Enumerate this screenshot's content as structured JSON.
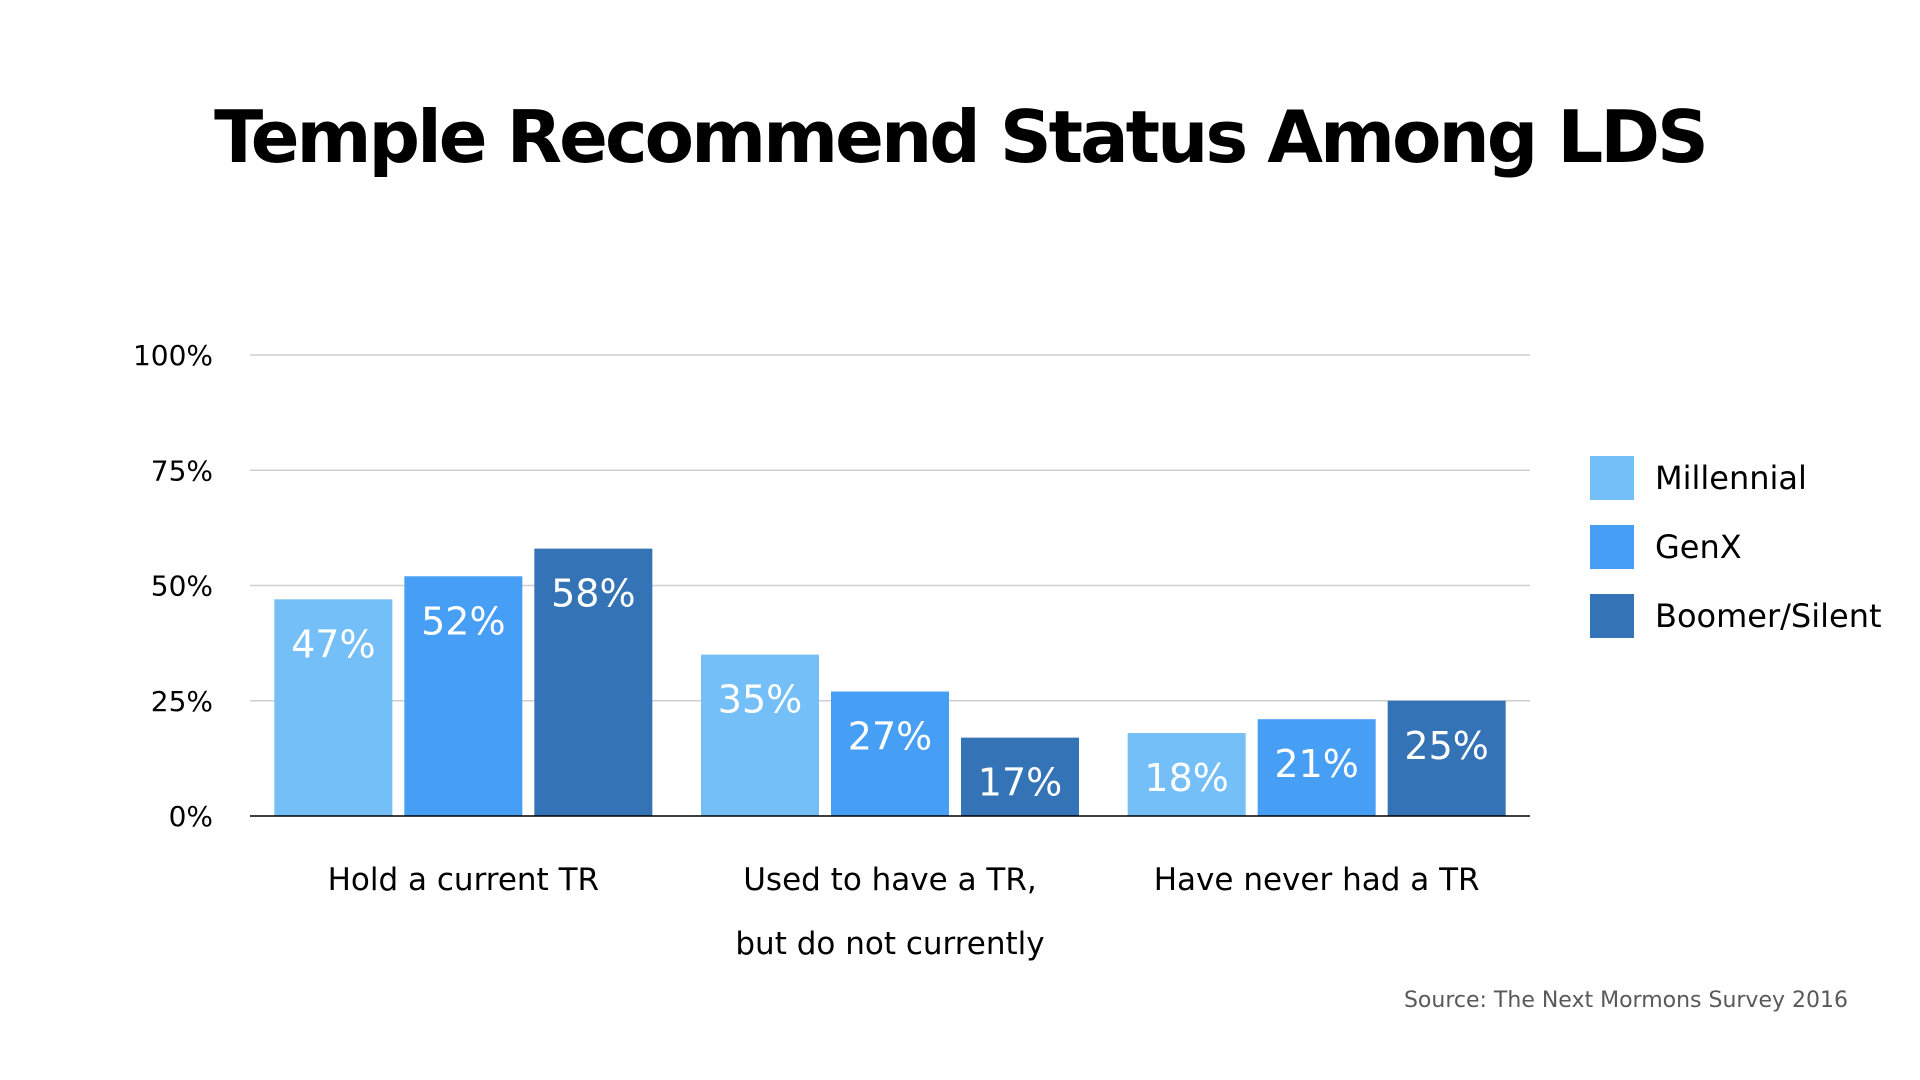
{
  "chart_data": {
    "type": "bar",
    "title": "Temple Recommend Status Among LDS",
    "categories": [
      [
        "Hold a current TR"
      ],
      [
        "Used to have a TR,",
        "but do not currently"
      ],
      [
        "Have never had a TR"
      ]
    ],
    "series": [
      {
        "name": "Millennial",
        "values": [
          47,
          35,
          18
        ],
        "labels": [
          "47%",
          "35%",
          "18%"
        ],
        "color": "#74bff8"
      },
      {
        "name": "GenX",
        "values": [
          52,
          27,
          21
        ],
        "labels": [
          "52%",
          "27%",
          "21%"
        ],
        "color": "#479ff5"
      },
      {
        "name": "Boomer/Silent",
        "values": [
          58,
          17,
          25
        ],
        "labels": [
          "58%",
          "17%",
          "25%"
        ],
        "color": "#3473b5"
      }
    ],
    "y_ticks": [
      0,
      25,
      50,
      75,
      100
    ],
    "y_tick_labels": [
      "0%",
      "25%",
      "50%",
      "75%",
      "100%"
    ],
    "ylim": [
      0,
      100
    ],
    "grid": true,
    "legend_position": "right",
    "source": "Source: The Next Mormons Survey 2016"
  }
}
